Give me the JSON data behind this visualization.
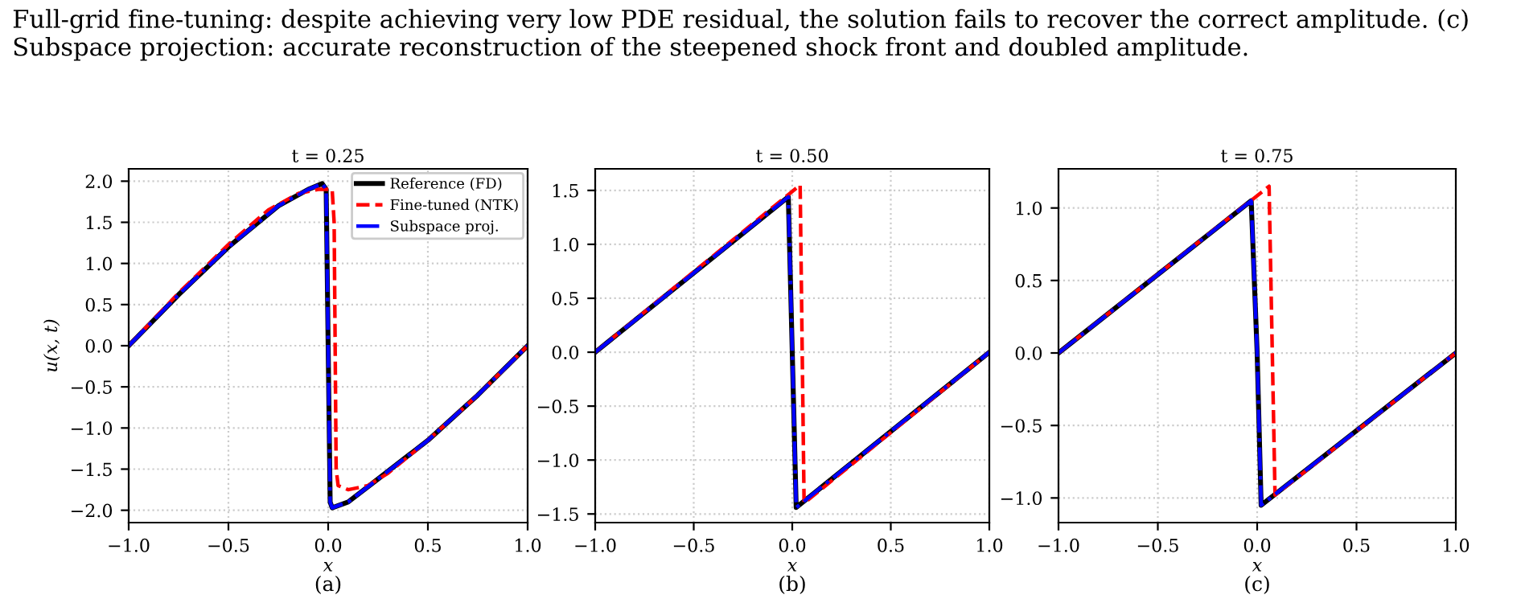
{
  "chart_data": [
    {
      "type": "line",
      "title": "t = 0.25",
      "xlabel": "x",
      "ylabel": "u(x, t)",
      "annotations": [
        "Full-grid fine-tuning: despite achieving very low PDE residual, the solution fails to recover the correct amplitude. (c) Subspace projection: accurate reconstruction of the steepened shock front and doubled amplitude.",
        "(a)"
      ],
      "xlim": [
        -1.0,
        1.0
      ],
      "xticks": [
        {
          "value": -1.0,
          "label": "−1.0"
        },
        {
          "value": -0.5,
          "label": "−0.5"
        },
        {
          "value": 0.0,
          "label": "0.0"
        },
        {
          "value": 0.5,
          "label": "0.5"
        },
        {
          "value": 1.0,
          "label": "1.0"
        }
      ],
      "ylim": [
        -2.15,
        2.15
      ],
      "yticks": [
        {
          "value": -2.0,
          "label": "−2.0"
        },
        {
          "value": -1.5,
          "label": "−1.5"
        },
        {
          "value": -1.0,
          "label": "−1.0"
        },
        {
          "value": -0.5,
          "label": "−0.5"
        },
        {
          "value": 0.0,
          "label": "0.0"
        },
        {
          "value": 0.5,
          "label": "0.5"
        },
        {
          "value": 1.0,
          "label": "1.0"
        },
        {
          "value": 1.5,
          "label": "1.5"
        },
        {
          "value": 2.0,
          "label": "2.0"
        }
      ],
      "grid": true,
      "legend": "top right",
      "series": [
        {
          "name": "Reference (FD)",
          "color": "#000000",
          "line_style": "solid",
          "x": [
            -1.0,
            -0.75,
            -0.5,
            -0.25,
            -0.1,
            -0.03,
            -0.01,
            0.0,
            0.01,
            0.02,
            0.1,
            0.25,
            0.5,
            0.75,
            1.0
          ],
          "values": [
            0.0,
            0.62,
            1.2,
            1.7,
            1.9,
            1.97,
            1.9,
            0.0,
            -1.9,
            -1.97,
            -1.9,
            -1.62,
            -1.15,
            -0.6,
            0.0
          ]
        },
        {
          "name": "Fine-tuned (NTK)",
          "color": "#ff0000",
          "line_style": "dashed",
          "x": [
            -1.0,
            -0.75,
            -0.5,
            -0.3,
            -0.15,
            -0.05,
            0.02,
            0.03,
            0.04,
            0.05,
            0.1,
            0.2,
            0.3,
            0.5,
            0.75,
            1.0
          ],
          "values": [
            0.0,
            0.64,
            1.23,
            1.65,
            1.85,
            1.9,
            1.9,
            1.5,
            -1.5,
            -1.7,
            -1.75,
            -1.7,
            -1.55,
            -1.15,
            -0.6,
            0.0
          ]
        },
        {
          "name": "Subspace proj.",
          "color": "#0000ff",
          "line_style": "dashdot",
          "x": [
            -1.0,
            -0.75,
            -0.5,
            -0.25,
            -0.1,
            -0.03,
            -0.01,
            0.0,
            0.01,
            0.02,
            0.1,
            0.25,
            0.5,
            0.75,
            1.0
          ],
          "values": [
            0.0,
            0.62,
            1.2,
            1.7,
            1.9,
            1.97,
            1.9,
            0.0,
            -1.9,
            -1.97,
            -1.9,
            -1.62,
            -1.15,
            -0.6,
            0.0
          ]
        }
      ]
    },
    {
      "type": "line",
      "title": "t = 0.50",
      "xlabel": "x",
      "annotations": [
        "(b)"
      ],
      "xlim": [
        -1.0,
        1.0
      ],
      "xticks": [
        {
          "value": -1.0,
          "label": "−1.0"
        },
        {
          "value": -0.5,
          "label": "−0.5"
        },
        {
          "value": 0.0,
          "label": "0.0"
        },
        {
          "value": 0.5,
          "label": "0.5"
        },
        {
          "value": 1.0,
          "label": "1.0"
        }
      ],
      "ylim": [
        -1.58,
        1.7
      ],
      "yticks": [
        {
          "value": -1.5,
          "label": "−1.5"
        },
        {
          "value": -1.0,
          "label": "−1.0"
        },
        {
          "value": -0.5,
          "label": "−0.5"
        },
        {
          "value": 0.0,
          "label": "0.0"
        },
        {
          "value": 0.5,
          "label": "0.5"
        },
        {
          "value": 1.0,
          "label": "1.0"
        },
        {
          "value": 1.5,
          "label": "1.5"
        }
      ],
      "grid": true,
      "series": [
        {
          "color": "#000000",
          "line_style": "solid",
          "x": [
            -1.0,
            -0.02,
            0.0,
            0.02,
            1.0
          ],
          "values": [
            0.0,
            1.44,
            0.0,
            -1.44,
            0.0
          ]
        },
        {
          "color": "#ff0000",
          "line_style": "dashed",
          "x": [
            -1.0,
            0.04,
            0.06,
            1.0
          ],
          "values": [
            0.0,
            1.55,
            -1.4,
            0.0
          ]
        },
        {
          "color": "#0000ff",
          "line_style": "dashdot",
          "x": [
            -1.0,
            -0.02,
            0.0,
            0.02,
            1.0
          ],
          "values": [
            0.0,
            1.44,
            0.0,
            -1.44,
            0.0
          ]
        }
      ]
    },
    {
      "type": "line",
      "title": "t = 0.75",
      "xlabel": "x",
      "annotations": [
        "(c)"
      ],
      "xlim": [
        -1.0,
        1.0
      ],
      "xticks": [
        {
          "value": -1.0,
          "label": "−1.0"
        },
        {
          "value": -0.5,
          "label": "−0.5"
        },
        {
          "value": 0.0,
          "label": "0.0"
        },
        {
          "value": 0.5,
          "label": "0.5"
        },
        {
          "value": 1.0,
          "label": "1.0"
        }
      ],
      "ylim": [
        -1.17,
        1.27
      ],
      "yticks": [
        {
          "value": -1.0,
          "label": "−1.0"
        },
        {
          "value": -0.5,
          "label": "−0.5"
        },
        {
          "value": 0.0,
          "label": "0.0"
        },
        {
          "value": 0.5,
          "label": "0.5"
        },
        {
          "value": 1.0,
          "label": "1.0"
        }
      ],
      "grid": true,
      "series": [
        {
          "color": "#000000",
          "line_style": "solid",
          "x": [
            -1.0,
            -0.03,
            0.0,
            0.02,
            1.0
          ],
          "values": [
            0.0,
            1.05,
            0.0,
            -1.05,
            0.0
          ]
        },
        {
          "color": "#ff0000",
          "line_style": "dashed",
          "x": [
            -1.0,
            0.06,
            0.09,
            1.0
          ],
          "values": [
            0.0,
            1.15,
            -0.98,
            0.0
          ]
        },
        {
          "color": "#0000ff",
          "line_style": "dashdot",
          "x": [
            -1.0,
            -0.03,
            0.0,
            0.02,
            1.0
          ],
          "values": [
            0.0,
            1.05,
            0.0,
            -1.05,
            0.0
          ]
        }
      ]
    }
  ]
}
